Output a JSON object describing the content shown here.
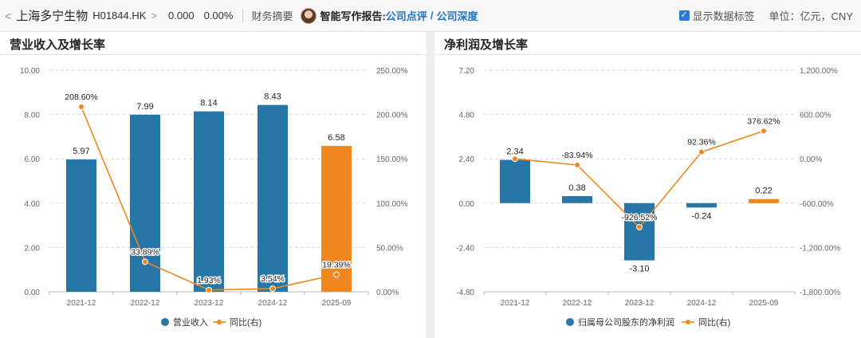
{
  "header": {
    "back_glyph": "<",
    "name": "上海多宁生物",
    "code": "H01844.HK",
    "chevron_glyph": ">",
    "price": "0.000",
    "change": "0.00%",
    "finance_summary": "财务摘要",
    "report_label": "智能写作报告:",
    "report_link_1": "公司点评",
    "report_sep": "/",
    "report_link_2": "公司深度",
    "show_labels_checked": true,
    "show_labels_text": "显示数据标签",
    "unit_text": "单位：亿元，CNY"
  },
  "colors": {
    "bar": "#2677a8",
    "bar_highlight": "#f0861f",
    "line": "#f0861f",
    "accent": "#1a73c8"
  },
  "chart_data": [
    {
      "type": "bar",
      "title": "营业收入及增长率",
      "categories": [
        "2021-12",
        "2022-12",
        "2023-12",
        "2024-12",
        "2025-09"
      ],
      "yticks_left": [
        "10.00",
        "8.00",
        "6.00",
        "4.00",
        "2.00",
        "0.00"
      ],
      "yticks_right": [
        "250.00%",
        "200.00%",
        "150.00%",
        "100.00%",
        "50.00%",
        "0.00%"
      ],
      "ylim_left": [
        0,
        10
      ],
      "ylim_right": [
        0,
        250
      ],
      "series": [
        {
          "name": "营业收入",
          "type": "bar",
          "values": [
            5.97,
            7.99,
            8.14,
            8.43,
            6.58
          ],
          "labels": [
            "5.97",
            "7.99",
            "8.14",
            "8.43",
            "6.58"
          ]
        },
        {
          "name": "同比(右)",
          "type": "line",
          "values": [
            208.6,
            33.89,
            1.93,
            3.54,
            19.39
          ],
          "labels": [
            "208.60%",
            "33.89%",
            "1.93%",
            "3.54%",
            "19.39%"
          ]
        }
      ],
      "legend": "bottom"
    },
    {
      "type": "bar",
      "title": "净利润及增长率",
      "categories": [
        "2021-12",
        "2022-12",
        "2023-12",
        "2024-12",
        "2025-09"
      ],
      "yticks_left": [
        "7.20",
        "4.80",
        "2.40",
        "0.00",
        "-2.40",
        "-4.80"
      ],
      "yticks_right": [
        "1,200.00%",
        "600.00%",
        "0.00%",
        "-600.00%",
        "-1,200.00%",
        "-1,800.00%"
      ],
      "ylim_left": [
        -4.8,
        7.2
      ],
      "ylim_right": [
        -1800,
        1200
      ],
      "series": [
        {
          "name": "归属母公司股东的净利润",
          "type": "bar",
          "values": [
            2.34,
            0.38,
            -3.1,
            -0.24,
            0.22
          ],
          "labels": [
            "2.34",
            "0.38",
            "-3.10",
            "-0.24",
            "0.22"
          ]
        },
        {
          "name": "同比(右)",
          "type": "line",
          "values": [
            0,
            -83.94,
            -926.52,
            92.36,
            376.62
          ],
          "labels": [
            "",
            "-83.94%",
            "-926.52%",
            "92.36%",
            "376.62%"
          ]
        }
      ],
      "legend": "bottom"
    }
  ]
}
